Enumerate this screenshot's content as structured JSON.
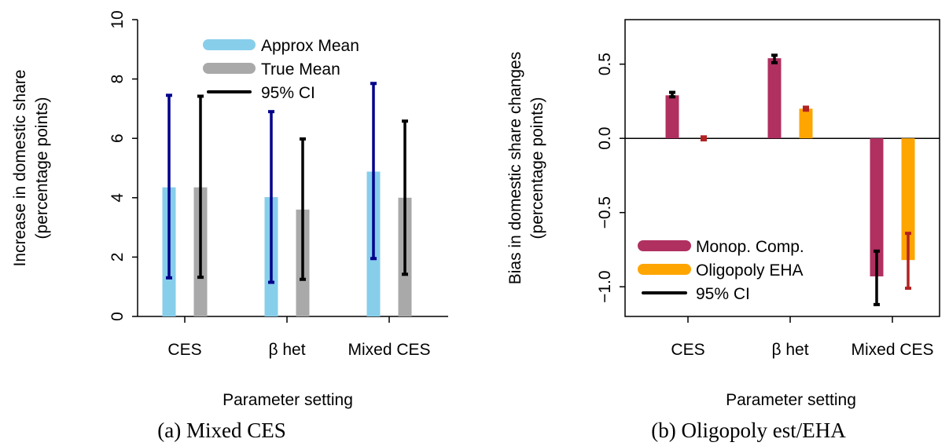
{
  "captions": {
    "a": "(a) Mixed CES",
    "b": "(b) Oligopoly est/EHA"
  },
  "chart_data": [
    {
      "type": "bar",
      "title": "",
      "xlabel": "Parameter setting",
      "ylabel": "Increase in domestic share",
      "ylabel2": "(percentage points)",
      "categories": [
        "CES",
        "β het",
        "Mixed CES"
      ],
      "ylim": [
        0,
        10
      ],
      "yticks": [
        0,
        2,
        4,
        6,
        8,
        10
      ],
      "grid": false,
      "legend_position": "top-right",
      "series": [
        {
          "name": "Approx Mean",
          "color": "#87CEEB",
          "ci_color": "#00008B",
          "values": [
            4.35,
            4.02,
            4.88
          ],
          "ci_low": [
            1.3,
            1.15,
            1.95
          ],
          "ci_high": [
            7.45,
            6.9,
            7.85
          ]
        },
        {
          "name": "True Mean",
          "color": "#A9A9A9",
          "ci_color": "#000000",
          "values": [
            4.35,
            3.6,
            4.0
          ],
          "ci_low": [
            1.32,
            1.25,
            1.42
          ],
          "ci_high": [
            7.42,
            5.98,
            6.58
          ]
        }
      ],
      "legend": [
        {
          "label": "Approx Mean",
          "color": "#87CEEB",
          "kind": "bar"
        },
        {
          "label": "True Mean",
          "color": "#A9A9A9",
          "kind": "bar"
        },
        {
          "label": "95% CI",
          "color": "#000000",
          "kind": "line"
        }
      ]
    },
    {
      "type": "bar",
      "title": "",
      "xlabel": "Parameter setting",
      "ylabel": "Bias in domestic share changes",
      "ylabel2": "(percentage points)",
      "categories": [
        "CES",
        "β het",
        "Mixed CES"
      ],
      "ylim": [
        -1.2,
        0.8
      ],
      "yticks": [
        -1.0,
        -0.5,
        0.0,
        0.5
      ],
      "ytick_labels": [
        "−1.0",
        "−0.5",
        "0.0",
        "0.5"
      ],
      "zero_line": true,
      "grid": false,
      "legend_position": "bottom-left",
      "series": [
        {
          "name": "Monop. Comp.",
          "color": "#B03060",
          "ci_color": "#000000",
          "values": [
            0.29,
            0.54,
            -0.93
          ],
          "ci_low": [
            0.28,
            0.51,
            -1.12
          ],
          "ci_high": [
            0.31,
            0.56,
            -0.76
          ]
        },
        {
          "name": "Oligopoly EHA",
          "color": "#FFA500",
          "ci_color": "#B22222",
          "values": [
            0.0,
            0.2,
            -0.82
          ],
          "ci_low": [
            -0.01,
            0.19,
            -1.01
          ],
          "ci_high": [
            0.01,
            0.21,
            -0.64
          ]
        }
      ],
      "legend": [
        {
          "label": "Monop. Comp.",
          "color": "#B03060",
          "kind": "bar"
        },
        {
          "label": "Oligopoly EHA",
          "color": "#FFA500",
          "kind": "bar"
        },
        {
          "label": "95% CI",
          "color": "#000000",
          "kind": "line"
        }
      ]
    }
  ]
}
